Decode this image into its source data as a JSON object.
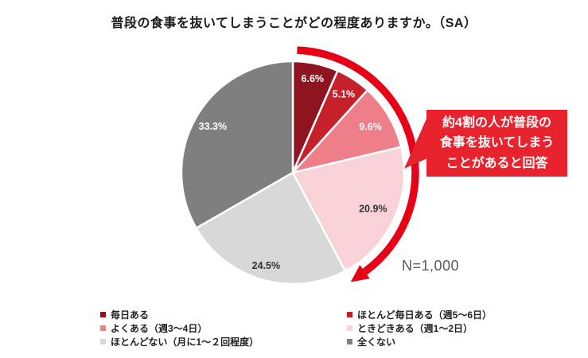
{
  "title": "普段の食事を抜いてしまうことがどの程度ありますか。（SA）",
  "n_label": "N=1,000",
  "chart_data": {
    "type": "pie",
    "title": "普段の食事を抜いてしまうことがどの程度ありますか。（SA）",
    "unit": "%",
    "start_angle": "top",
    "direction": "clockwise",
    "legend_position": "bottom",
    "sample_label": "N=1,000",
    "slices": [
      {
        "label": "毎日ある",
        "value": 6.6,
        "display": "6.6%",
        "color": "#8E1420",
        "label_color": "#FFFFFF"
      },
      {
        "label": "ほとんど毎日ある（週5〜6日）",
        "value": 5.1,
        "display": "5.1%",
        "color": "#C6202A",
        "label_color": "#FFFFFF"
      },
      {
        "label": "よくある（週3〜4日）",
        "value": 9.6,
        "display": "9.6%",
        "color": "#EE7E87",
        "label_color": "#FFFFFF"
      },
      {
        "label": "ときどきある（週1〜2日）",
        "value": 20.9,
        "display": "20.9%",
        "color": "#F8D2D6",
        "label_color": "#333333"
      },
      {
        "label": "ほとんどない（月に1〜２回程度）",
        "value": 24.5,
        "display": "24.5%",
        "color": "#D8D8D8",
        "label_color": "#333333"
      },
      {
        "label": "全くない",
        "value": 33.3,
        "display": "33.3%",
        "color": "#7F7F7F",
        "label_color": "#FFFFFF"
      }
    ]
  },
  "annotation": {
    "callout_text": "約4割の人が普段の\n食事を抜いてしまう\nことがあると回答",
    "callout_bg": "#E8232D",
    "callout_text_color": "#FFFFFF",
    "arc_color": "#E80016",
    "arc_span_pct": 42.2
  },
  "legend": {
    "columns": [
      [
        {
          "label": "毎日ある",
          "slice": 0
        },
        {
          "label": "よくある（週3〜4日）",
          "slice": 2
        },
        {
          "label": "ほとんどない（月に1〜２回程度）",
          "slice": 4
        }
      ],
      [
        {
          "label": "ほとんど毎日ある（週5〜6日）",
          "slice": 1
        },
        {
          "label": "ときどきある（週1〜2日）",
          "slice": 3
        },
        {
          "label": "全くない",
          "slice": 5
        }
      ]
    ]
  }
}
